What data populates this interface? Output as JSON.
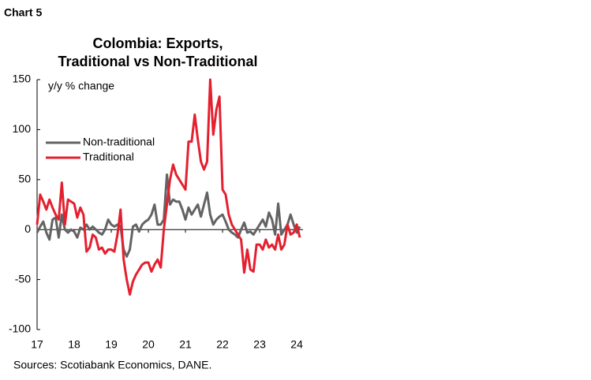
{
  "chart_data": {
    "type": "line",
    "header": "Chart 5",
    "title": [
      "Colombia: Exports,",
      "Traditional vs Non-Traditional"
    ],
    "y_axis_label": "y/y % change",
    "source": "Sources: Scotiabank Economics, DANE.",
    "categories": [
      "17",
      null,
      null,
      null,
      null,
      null,
      null,
      null,
      null,
      null,
      null,
      null,
      "18",
      null,
      null,
      null,
      null,
      null,
      null,
      null,
      null,
      null,
      null,
      null,
      "19",
      null,
      null,
      null,
      null,
      null,
      null,
      null,
      null,
      null,
      null,
      null,
      "20",
      null,
      null,
      null,
      null,
      null,
      null,
      null,
      null,
      null,
      null,
      null,
      "21",
      null,
      null,
      null,
      null,
      null,
      null,
      null,
      null,
      null,
      null,
      null,
      "22",
      null,
      null,
      null,
      null,
      null,
      null,
      null,
      null,
      null,
      null,
      null,
      "23",
      null,
      null,
      null,
      null,
      null,
      null,
      null,
      null,
      null,
      null,
      null,
      "24",
      null
    ],
    "series": [
      {
        "name": "Non-traditional",
        "color": "#636363",
        "values": [
          -3,
          3,
          8,
          -3,
          -10,
          10,
          12,
          -8,
          15,
          0,
          -3,
          0,
          -2,
          -8,
          2,
          0,
          5,
          0,
          3,
          0,
          -3,
          -5,
          0,
          10,
          5,
          3,
          5,
          3,
          -20,
          -27,
          -20,
          3,
          5,
          -2,
          5,
          8,
          10,
          15,
          25,
          5,
          5,
          10,
          55,
          25,
          30,
          28,
          28,
          20,
          10,
          22,
          15,
          20,
          25,
          13,
          25,
          37,
          15,
          5,
          10,
          13,
          15,
          8,
          0,
          -3,
          -5,
          -8,
          0,
          7,
          -3,
          -2,
          -5,
          0,
          5,
          10,
          3,
          17,
          10,
          -5,
          26,
          -5,
          0,
          5,
          15,
          5,
          -3,
          3
        ]
      },
      {
        "name": "Traditional",
        "color": "#e4202f",
        "values": [
          5,
          35,
          28,
          20,
          30,
          22,
          15,
          10,
          47,
          5,
          30,
          28,
          26,
          12,
          22,
          15,
          -22,
          -18,
          -5,
          -8,
          -20,
          -18,
          -24,
          -20,
          -20,
          -22,
          -5,
          20,
          -30,
          -50,
          -65,
          -52,
          -45,
          -40,
          -35,
          -33,
          -33,
          -42,
          -35,
          -30,
          -38,
          0,
          25,
          50,
          65,
          55,
          50,
          45,
          40,
          88,
          88,
          115,
          90,
          68,
          60,
          68,
          150,
          95,
          120,
          133,
          40,
          35,
          15,
          5,
          0,
          -5,
          -10,
          -43,
          -20,
          -40,
          -42,
          -15,
          -15,
          -20,
          -10,
          -18,
          -15,
          -20,
          -5,
          -20,
          -15,
          5,
          -5,
          -3,
          5,
          -8
        ]
      }
    ],
    "ylim": [
      -100,
      150
    ],
    "yticks": [
      -100,
      -50,
      0,
      50,
      100,
      150
    ],
    "legend": "upper-left",
    "grid": false
  }
}
